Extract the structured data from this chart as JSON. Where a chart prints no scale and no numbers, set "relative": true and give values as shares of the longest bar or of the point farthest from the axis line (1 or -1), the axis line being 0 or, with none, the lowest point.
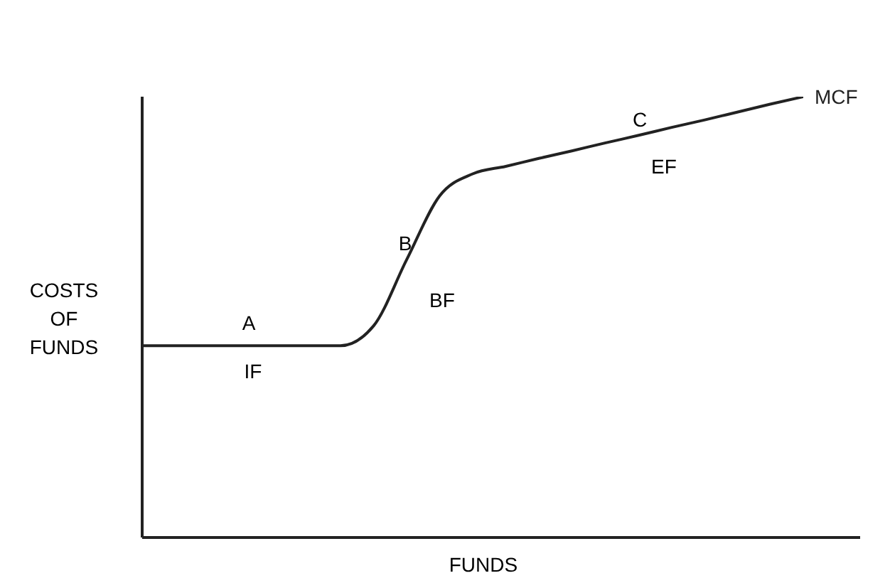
{
  "chart_data": {
    "type": "line",
    "relative": true,
    "xlabel": "FUNDS",
    "ylabel": "COSTS\nOF\nFUNDS",
    "categories": [
      null,
      null,
      null,
      null,
      null,
      null,
      null,
      null,
      null,
      null,
      null,
      null,
      null,
      null,
      null,
      null,
      null,
      null,
      null,
      null,
      null
    ],
    "series": [
      {
        "name": "MCF",
        "color": "#222222",
        "values": [
          0.435,
          0.435,
          0.435,
          0.435,
          0.435,
          0.435,
          0.435,
          0.48,
          0.63,
          0.775,
          0.825,
          0.842,
          0.86,
          0.877,
          0.895,
          0.912,
          0.93,
          0.947,
          0.965,
          0.983,
          1
        ]
      }
    ],
    "annotations": [
      "A",
      "IF",
      "B",
      "BF",
      "C",
      "EF"
    ],
    "marker": "none",
    "line_style": "solid",
    "grid": false,
    "legend": false
  }
}
